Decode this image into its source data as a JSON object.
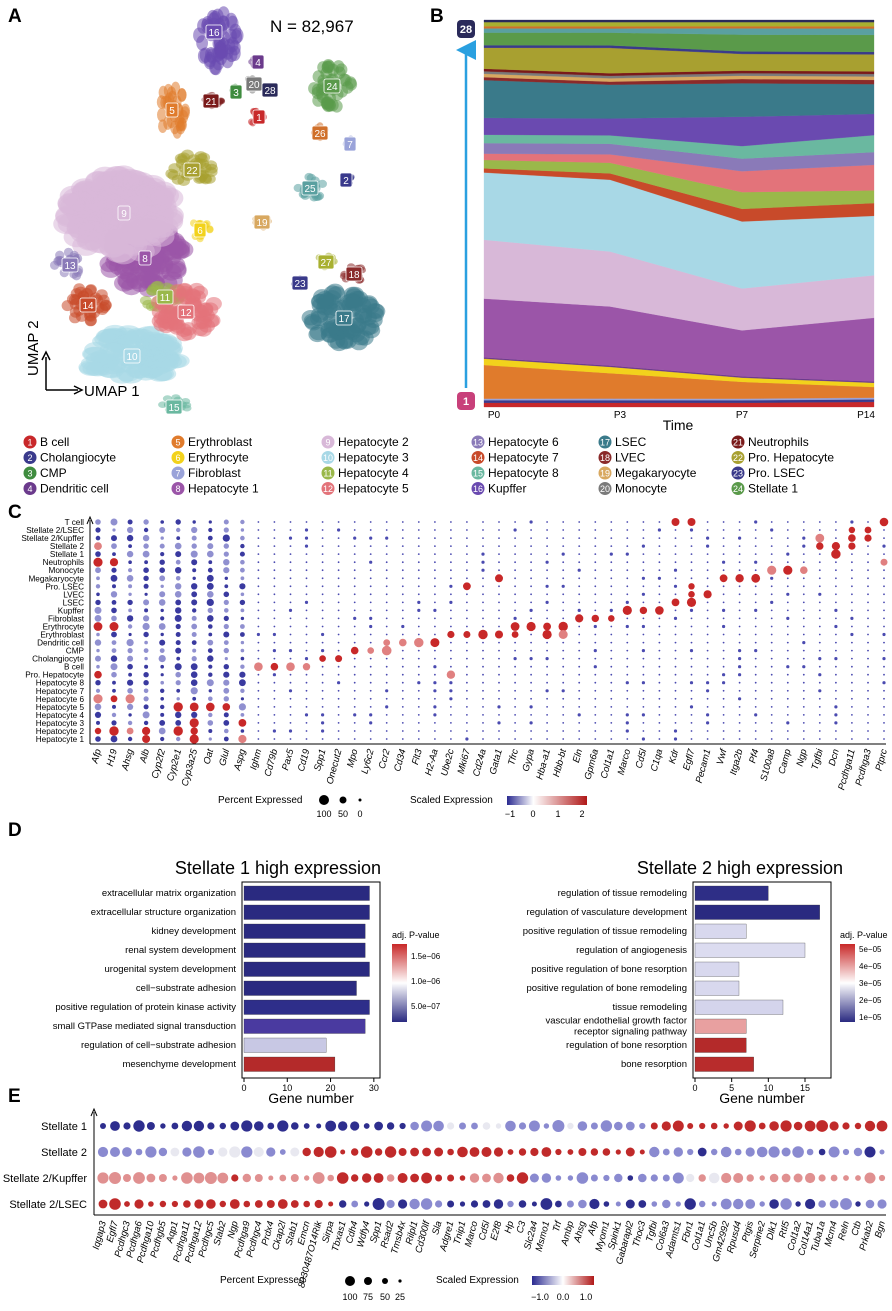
{
  "panels": {
    "A": "A",
    "B": "B",
    "C": "C",
    "D": "D",
    "E": "E"
  },
  "panelA": {
    "n_label": "N = 82,967",
    "xlabel": "UMAP 1",
    "ylabel": "UMAP 2",
    "clusters": [
      {
        "id": "1",
        "color": "#c8282a"
      },
      {
        "id": "2",
        "color": "#3a3a8c"
      },
      {
        "id": "3",
        "color": "#3f8c3f"
      },
      {
        "id": "4",
        "color": "#6b3a8c"
      },
      {
        "id": "5",
        "color": "#e07b2c"
      },
      {
        "id": "6",
        "color": "#f2d21c"
      },
      {
        "id": "7",
        "color": "#9aa3d9"
      },
      {
        "id": "8",
        "color": "#9b55a8"
      },
      {
        "id": "9",
        "color": "#d8b8d8"
      },
      {
        "id": "10",
        "color": "#a8d8e6"
      },
      {
        "id": "11",
        "color": "#9ab84a"
      },
      {
        "id": "12",
        "color": "#e3737a"
      },
      {
        "id": "13",
        "color": "#8a7ab8"
      },
      {
        "id": "14",
        "color": "#c84a2a"
      },
      {
        "id": "15",
        "color": "#6ab8a0"
      },
      {
        "id": "16",
        "color": "#6a4ab0"
      },
      {
        "id": "17",
        "color": "#3a7a8a"
      },
      {
        "id": "18",
        "color": "#8a2a2a"
      },
      {
        "id": "19",
        "color": "#d8a860"
      },
      {
        "id": "20",
        "color": "#7a7a7a"
      },
      {
        "id": "21",
        "color": "#7a1a1a"
      },
      {
        "id": "22",
        "color": "#a8a030"
      },
      {
        "id": "23",
        "color": "#3a3a8a"
      },
      {
        "id": "24",
        "color": "#5a9a4a"
      },
      {
        "id": "25",
        "color": "#5aa0a0"
      },
      {
        "id": "26",
        "color": "#d0702a"
      },
      {
        "id": "27",
        "color": "#a8b030"
      },
      {
        "id": "28",
        "color": "#2a2a5a"
      }
    ]
  },
  "panelB": {
    "xlabel": "Time",
    "x_ticks": [
      "P0",
      "P3",
      "P7",
      "P14"
    ],
    "top_label": "28",
    "bottom_label": "1"
  },
  "legend": [
    {
      "id": "1",
      "name": "B cell",
      "color": "#c8282a"
    },
    {
      "id": "2",
      "name": "Cholangiocyte",
      "color": "#3a3a8c"
    },
    {
      "id": "3",
      "name": "CMP",
      "color": "#3f8c3f"
    },
    {
      "id": "4",
      "name": "Dendritic cell",
      "color": "#6b3a8c"
    },
    {
      "id": "5",
      "name": "Erythroblast",
      "color": "#e07b2c"
    },
    {
      "id": "6",
      "name": "Erythrocyte",
      "color": "#f2d21c"
    },
    {
      "id": "7",
      "name": "Fibroblast",
      "color": "#9aa3d9"
    },
    {
      "id": "8",
      "name": "Hepatocyte 1",
      "color": "#9b55a8"
    },
    {
      "id": "9",
      "name": "Hepatocyte 2",
      "color": "#d8b8d8"
    },
    {
      "id": "10",
      "name": "Hepatocyte 3",
      "color": "#a8d8e6"
    },
    {
      "id": "11",
      "name": "Hepatocyte 4",
      "color": "#9ab84a"
    },
    {
      "id": "12",
      "name": "Hepatocyte 5",
      "color": "#e3737a"
    },
    {
      "id": "13",
      "name": "Hepatocyte 6",
      "color": "#8a7ab8"
    },
    {
      "id": "14",
      "name": "Hepatocyte 7",
      "color": "#c84a2a"
    },
    {
      "id": "15",
      "name": "Hepatocyte 8",
      "color": "#6ab8a0"
    },
    {
      "id": "16",
      "name": "Kupffer",
      "color": "#6a4ab0"
    },
    {
      "id": "17",
      "name": "LSEC",
      "color": "#3a7a8a"
    },
    {
      "id": "18",
      "name": "LVEC",
      "color": "#8a2a2a"
    },
    {
      "id": "19",
      "name": "Megakaryocyte",
      "color": "#d8a860"
    },
    {
      "id": "20",
      "name": "Monocyte",
      "color": "#7a7a7a"
    },
    {
      "id": "21",
      "name": "Neutrophils",
      "color": "#7a1a1a"
    },
    {
      "id": "22",
      "name": "Pro. Hepatocyte",
      "color": "#a8a030"
    },
    {
      "id": "23",
      "name": "Pro. LSEC",
      "color": "#3a3a8a"
    },
    {
      "id": "24",
      "name": "Stellate 1",
      "color": "#5a9a4a"
    },
    {
      "id": "25",
      "name": "Stellate 2",
      "color": "#5aa0a0"
    },
    {
      "id": "26",
      "name": "Stellate 2/Kupffer",
      "color": "#d0702a"
    },
    {
      "id": "27",
      "name": "Stellate 2/LSEC",
      "color": "#a8b030"
    },
    {
      "id": "28",
      "name": "T cell",
      "color": "#2a2a5a"
    }
  ],
  "panelC": {
    "rows": [
      "T cell",
      "Stellate 2/LSEC",
      "Stellate 2/Kupffer",
      "Stellate 2",
      "Stellate 1",
      "Neutrophils",
      "Monocyte",
      "Megakaryocyte",
      "Pro. LSEC",
      "LVEC",
      "LSEC",
      "Kupffer",
      "Fibroblast",
      "Erythrocyte",
      "Erythroblast",
      "Dendritic cell",
      "CMP",
      "Cholangiocyte",
      "B cell",
      "Pro. Hepatocyte",
      "Hepatocyte 8",
      "Hepatocyte 7",
      "Hepatocyte 6",
      "Hepatocyte 5",
      "Hepatocyte 4",
      "Hepatocyte 3",
      "Hepatocyte 2",
      "Hepatocyte 1"
    ],
    "genes": [
      "Afp",
      "H19",
      "Ahsg",
      "Alb",
      "Cyp2f2",
      "Cyp2e1",
      "Cyp3a25",
      "Oat",
      "Glul",
      "Aspg",
      "Ighm",
      "Cd79b",
      "Pax5",
      "Cd19",
      "Spp1",
      "Onecut2",
      "Mpo",
      "Ly6c2",
      "Ccr2",
      "Cd34",
      "Flt3",
      "H2-Aa",
      "Ube2c",
      "Mki67",
      "Cd24a",
      "Gata1",
      "Tfrc",
      "Gypa",
      "Hba-a1",
      "Hbb-bt",
      "Eln",
      "Gpm6a",
      "Col1a1",
      "Marco",
      "Cd5l",
      "C1qa",
      "Kdr",
      "Egfl7",
      "Pecam1",
      "Vwf",
      "Itga2b",
      "Pf4",
      "S100a8",
      "Camp",
      "Ngp",
      "Tgfbi",
      "Dcn",
      "Pcdhga11",
      "Pcdhga3",
      "Ptprc"
    ],
    "size_legend_title": "Percent Expressed",
    "size_legend_values": [
      "100",
      "50",
      "0"
    ],
    "color_legend_title": "Scaled Expression",
    "color_legend_ticks": [
      "−1",
      "0",
      "1",
      "2"
    ]
  },
  "panelD": {
    "left": {
      "title": "Stellate 1 high expression",
      "xlabel": "Gene number",
      "x_ticks": [
        "0",
        "10",
        "20",
        "30"
      ],
      "legend_title": "adj. P-value",
      "legend_ticks": [
        "1.5e−06",
        "1.0e−06",
        "5.0e−07"
      ],
      "bars": [
        {
          "term": "extracellular matrix organization",
          "genes": 29,
          "color": "#2a2a80"
        },
        {
          "term": "extracellular structure organization",
          "genes": 29,
          "color": "#2a2a80"
        },
        {
          "term": "kidney development",
          "genes": 28,
          "color": "#2a2a80"
        },
        {
          "term": "renal system development",
          "genes": 28,
          "color": "#2a2a80"
        },
        {
          "term": "urogenital system development",
          "genes": 29,
          "color": "#2a2a80"
        },
        {
          "term": "cell−substrate adhesion",
          "genes": 26,
          "color": "#2a2a80"
        },
        {
          "term": "positive regulation of protein kinase activity",
          "genes": 29,
          "color": "#2e2e8a"
        },
        {
          "term": "small GTPase mediated signal transduction",
          "genes": 28,
          "color": "#4a3aa0"
        },
        {
          "term": "regulation of cell−substrate adhesion",
          "genes": 19,
          "color": "#c8c8e4"
        },
        {
          "term": "mesenchyme development",
          "genes": 21,
          "color": "#b42a2a"
        }
      ]
    },
    "right": {
      "title": "Stellate 2 high expression",
      "xlabel": "Gene number",
      "x_ticks": [
        "0",
        "5",
        "10",
        "15"
      ],
      "legend_title": "adj. P-value",
      "legend_ticks": [
        "5e−05",
        "4e−05",
        "3e−05",
        "2e−05",
        "1e−05"
      ],
      "bars": [
        {
          "term": "regulation of tissue remodeling",
          "genes": 10,
          "color": "#2e2e86"
        },
        {
          "term": "regulation of vasculature development",
          "genes": 17,
          "color": "#2a2a80"
        },
        {
          "term": "positive regulation of tissue remodeling",
          "genes": 7,
          "color": "#d8d8ee"
        },
        {
          "term": "regulation of angiogenesis",
          "genes": 15,
          "color": "#dcdcf0"
        },
        {
          "term": "positive regulation of bone resorption",
          "genes": 6,
          "color": "#d8d8ee"
        },
        {
          "term": "positive regulation of bone remodeling",
          "genes": 6,
          "color": "#d8d8ee"
        },
        {
          "term": "tissue remodeling",
          "genes": 12,
          "color": "#d4d4ec"
        },
        {
          "term": "vascular endothelial growth factor receptor signaling pathway",
          "genes": 7,
          "color": "#e8a0a0"
        },
        {
          "term": "regulation of bone resorption",
          "genes": 7,
          "color": "#b42a2a"
        },
        {
          "term": "bone resorption",
          "genes": 8,
          "color": "#b82c2c"
        }
      ]
    }
  },
  "panelE": {
    "rows": [
      "Stellate 1",
      "Stellate 2",
      "Stellate 2/Kupffer",
      "Stellate 2/LSEC"
    ],
    "genes": [
      "Iqgap3",
      "Egfl7",
      "Pcdhgc3",
      "Pcdhga6",
      "Pcdhga10",
      "Pcdhgb5",
      "Aqp1",
      "Pcdhga11",
      "Pcdhga12",
      "Pcdhgc5",
      "Stab2",
      "Ngp",
      "Pcdhga9",
      "Pcdhgc4",
      "Prdx4",
      "Ckap2l",
      "Stab1",
      "Emcn",
      "8030487O14Rik",
      "Sirpa",
      "Tbxas1",
      "Cdh4",
      "Wdfy4",
      "Spp1",
      "Rsad2",
      "Tmsb4x",
      "Rilpl1",
      "Cd300lf",
      "Sla",
      "Adgre1",
      "Tnip1",
      "Marco",
      "Cd5l",
      "E2f8",
      "Hp",
      "C3",
      "Slc2a4",
      "Msmo1",
      "Trf",
      "Ambp",
      "Ahsg",
      "Afp",
      "Myom1",
      "Spink1",
      "Gabarapl2",
      "Thoc3",
      "Tgfbi",
      "Col6a3",
      "Adamts1",
      "Fbn1",
      "Col1a1",
      "Unc5b",
      "Gm42992",
      "Rpusd4",
      "Ptgis",
      "Serpine2",
      "Dlk1",
      "Rtl5",
      "Col1a2",
      "Col14a1",
      "Tuba1a",
      "Mcm4",
      "Reln",
      "Ctb",
      "Prkab2",
      "Bgn"
    ],
    "size_legend_title": "Percent Expressed",
    "size_legend_values": [
      "100",
      "75",
      "50",
      "25"
    ],
    "color_legend_title": "Scaled Expression",
    "color_legend_ticks": [
      "−1.0",
      "0.0",
      "1.0"
    ]
  }
}
